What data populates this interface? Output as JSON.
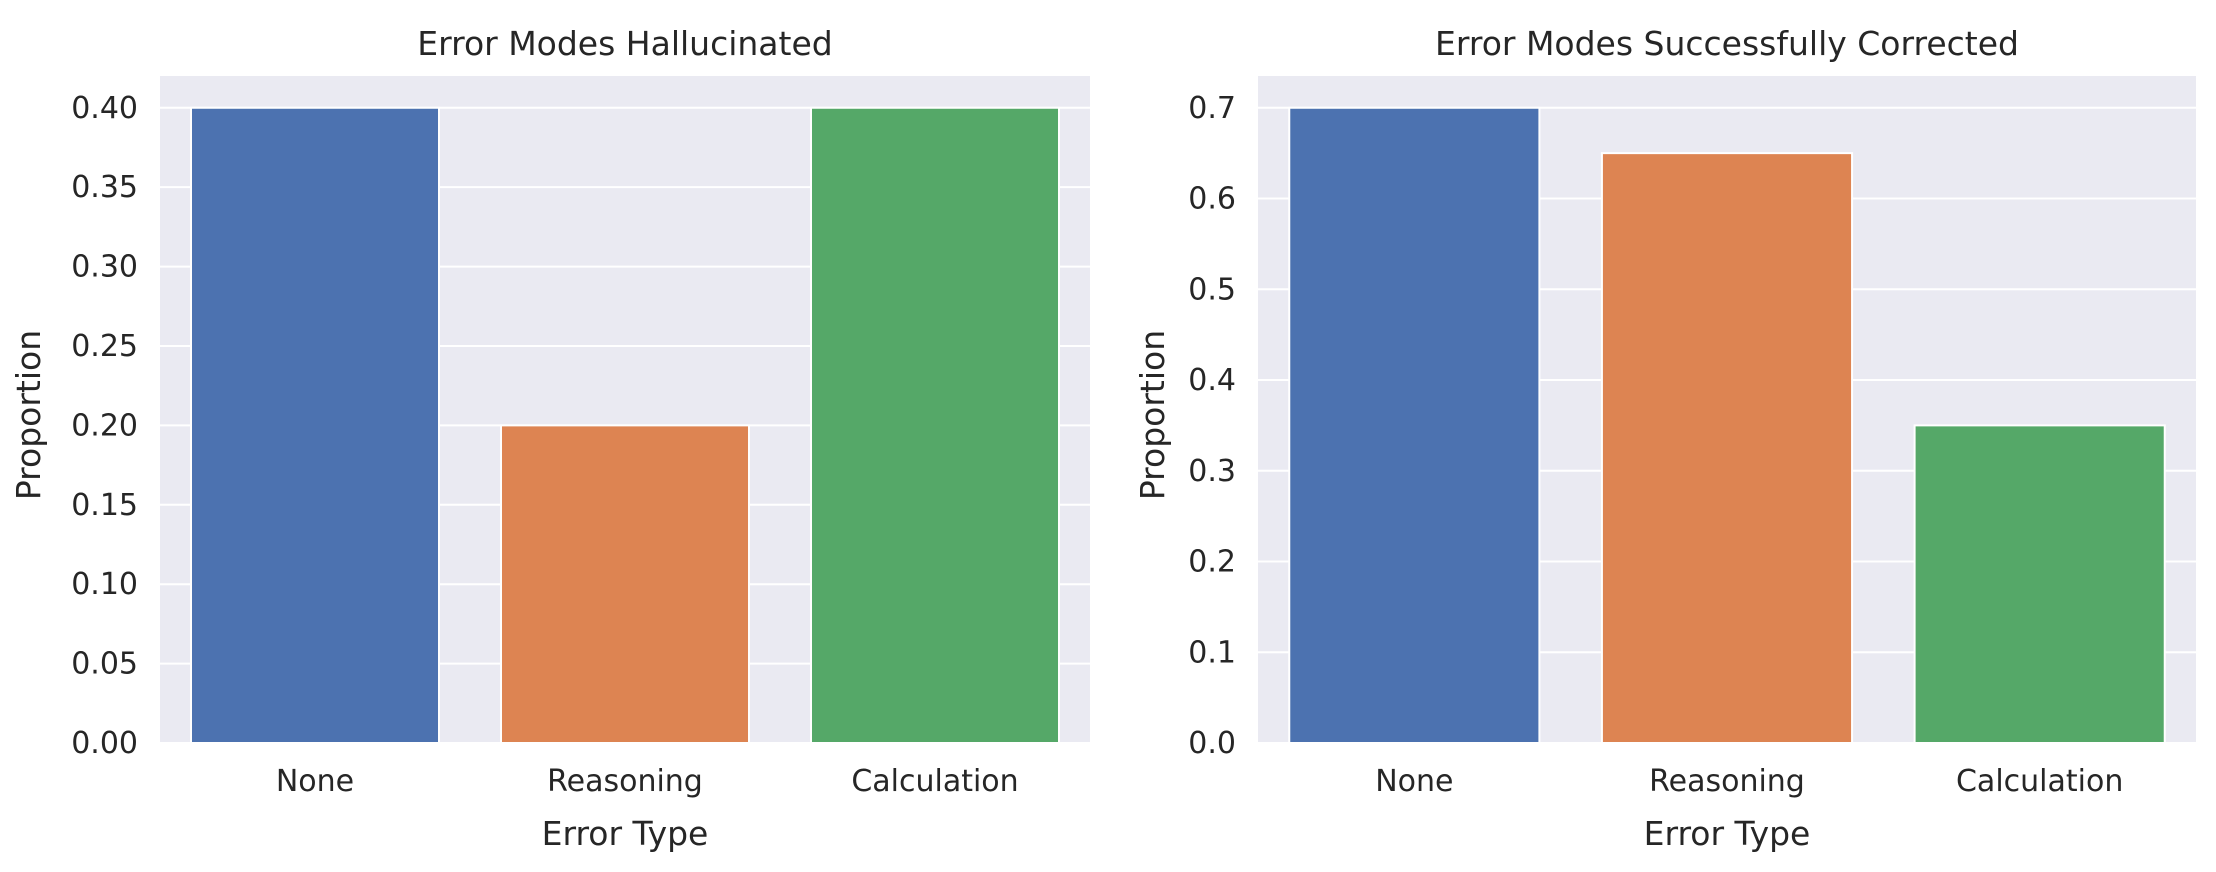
{
  "chart_data": [
    {
      "type": "bar",
      "title": "Error Modes Hallucinated",
      "xlabel": "Error Type",
      "ylabel": "Proportion",
      "categories": [
        "None",
        "Reasoning",
        "Calculation"
      ],
      "values": [
        0.4,
        0.2,
        0.4
      ],
      "colors": [
        "#4c72b0",
        "#dd8452",
        "#55a868"
      ],
      "ylim": [
        0,
        0.42
      ],
      "yticks": [
        0.0,
        0.05,
        0.1,
        0.15,
        0.2,
        0.25,
        0.3,
        0.35,
        0.4
      ],
      "ytick_labels": [
        "0.00",
        "0.05",
        "0.10",
        "0.15",
        "0.20",
        "0.25",
        "0.30",
        "0.35",
        "0.40"
      ],
      "grid": true,
      "legend": "none"
    },
    {
      "type": "bar",
      "title": "Error Modes Successfully Corrected",
      "xlabel": "Error Type",
      "ylabel": "Proportion",
      "categories": [
        "None",
        "Reasoning",
        "Calculation"
      ],
      "values": [
        0.7,
        0.65,
        0.35
      ],
      "colors": [
        "#4c72b0",
        "#dd8452",
        "#55a868"
      ],
      "ylim": [
        0,
        0.735
      ],
      "yticks": [
        0.0,
        0.1,
        0.2,
        0.3,
        0.4,
        0.5,
        0.6,
        0.7
      ],
      "ytick_labels": [
        "0.0",
        "0.1",
        "0.2",
        "0.3",
        "0.4",
        "0.5",
        "0.6",
        "0.7"
      ],
      "grid": true,
      "legend": "none"
    }
  ]
}
